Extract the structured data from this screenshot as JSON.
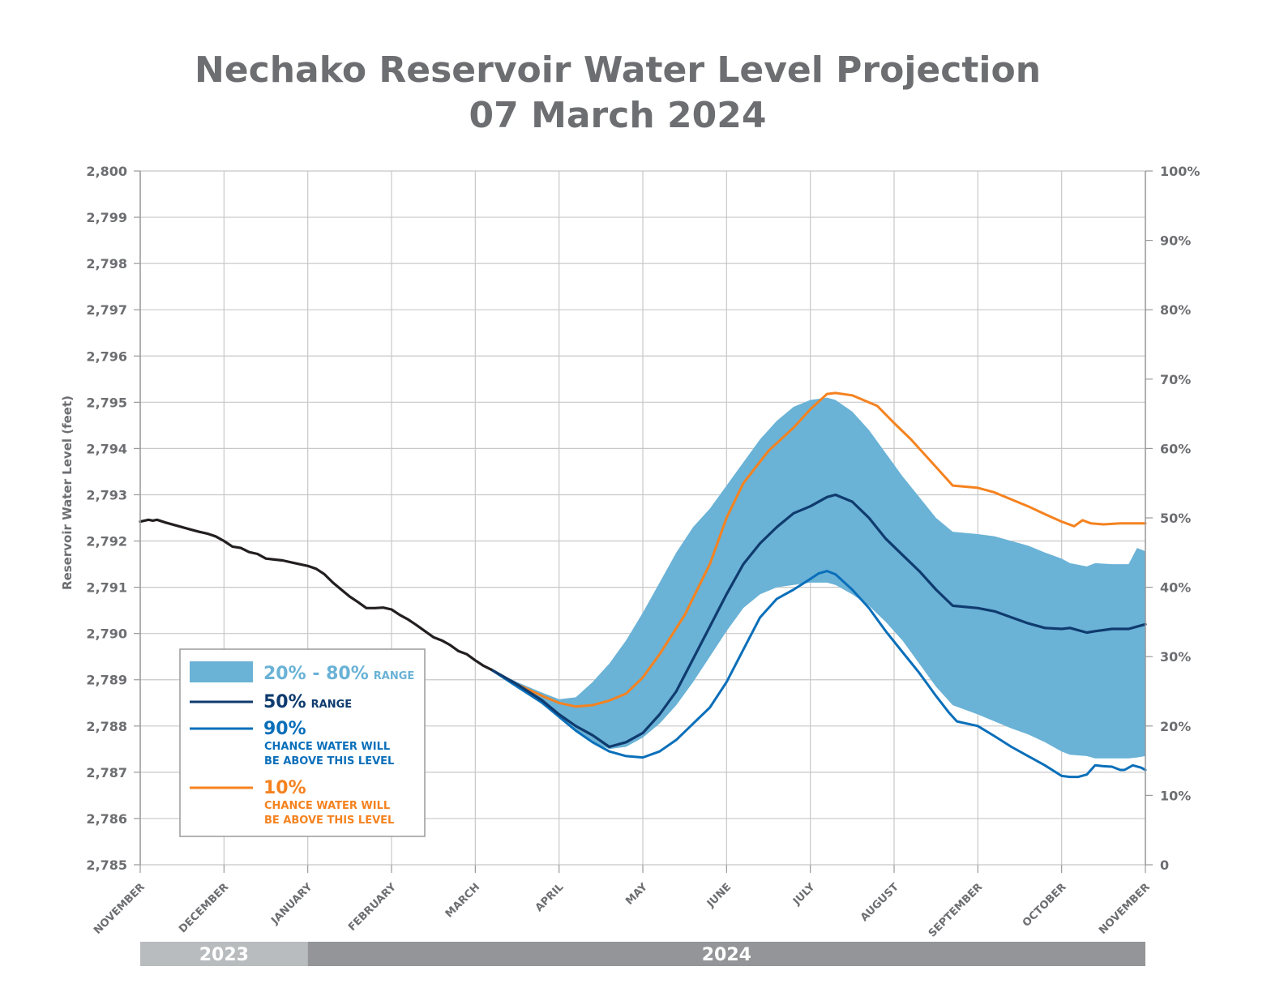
{
  "chart_data": {
    "type": "line",
    "title": "Nechako Reservoir Water Level Projection",
    "subtitle": "07 March 2024",
    "ylabel": "Reservoir Water Level (feet)",
    "ylim": [
      2785,
      2800
    ],
    "y_ticks": [
      "2,785",
      "2,786",
      "2,787",
      "2,788",
      "2,789",
      "2,790",
      "2,791",
      "2,792",
      "2,793",
      "2,794",
      "2,795",
      "2,796",
      "2,797",
      "2,798",
      "2,799",
      "2,800"
    ],
    "y2_ticks": [
      "0",
      "10%",
      "20%",
      "30%",
      "40%",
      "50%",
      "60%",
      "70%",
      "80%",
      "90%",
      "100%"
    ],
    "x_ticks": [
      "NOVEMBER",
      "DECEMBER",
      "JANUARY",
      "FEBRUARY",
      "MARCH",
      "APRIL",
      "MAY",
      "JUNE",
      "JULY",
      "AUGUST",
      "SEPTEMBER",
      "OCTOBER",
      "NOVEMBER"
    ],
    "years": [
      {
        "label": "2023",
        "from": 0,
        "to": 2
      },
      {
        "label": "2024",
        "from": 2,
        "to": 12
      }
    ],
    "grid": true,
    "legend_position": "bottom-left",
    "legend": {
      "band": {
        "big": "20% - 80%",
        "small": "RANGE"
      },
      "median": {
        "big": "50%",
        "small": "RANGE"
      },
      "p90": {
        "big": "90%",
        "small1": "CHANCE WATER WILL",
        "small2": "BE ABOVE THIS LEVEL"
      },
      "p10": {
        "big": "10%",
        "small1": "CHANCE WATER WILL",
        "small2": "BE ABOVE THIS LEVEL"
      }
    },
    "colors": {
      "observed": "#231f20",
      "median": "#0f3b6e",
      "p90": "#0a6fba",
      "p10": "#f5821f",
      "band": "#6ab2d6",
      "band_text": "#6ab2d6",
      "grid": "#c8c8c8",
      "year_2023": "#b8bcbf",
      "year_2024": "#939598"
    },
    "x_unit": "months since 1 Nov 2023",
    "series": [
      {
        "name": "observed",
        "x": [
          0,
          0.05,
          0.1,
          0.15,
          0.2,
          0.3,
          0.4,
          0.5,
          0.6,
          0.7,
          0.8,
          0.9,
          1.0,
          1.1,
          1.2,
          1.3,
          1.4,
          1.5,
          1.6,
          1.7,
          1.8,
          1.9,
          2.0,
          2.1,
          2.2,
          2.3,
          2.4,
          2.5,
          2.6,
          2.7,
          2.8,
          2.9,
          3.0,
          3.1,
          3.2,
          3.3,
          3.4,
          3.5,
          3.6,
          3.7,
          3.8,
          3.9,
          4.0,
          4.1,
          4.19
        ],
        "values": [
          2792.42,
          2792.44,
          2792.46,
          2792.44,
          2792.46,
          2792.4,
          2792.35,
          2792.3,
          2792.25,
          2792.2,
          2792.16,
          2792.1,
          2792.0,
          2791.88,
          2791.85,
          2791.76,
          2791.72,
          2791.62,
          2791.6,
          2791.58,
          2791.54,
          2791.5,
          2791.46,
          2791.4,
          2791.28,
          2791.1,
          2790.95,
          2790.8,
          2790.68,
          2790.55,
          2790.55,
          2790.56,
          2790.52,
          2790.4,
          2790.3,
          2790.18,
          2790.05,
          2789.92,
          2789.85,
          2789.75,
          2789.62,
          2789.55,
          2789.42,
          2789.3,
          2789.22
        ]
      },
      {
        "name": "10%",
        "x": [
          4.19,
          4.5,
          4.8,
          5.0,
          5.2,
          5.4,
          5.6,
          5.8,
          6.0,
          6.2,
          6.5,
          6.8,
          7.0,
          7.2,
          7.5,
          7.8,
          8.0,
          8.2,
          8.3,
          8.5,
          8.8,
          9.0,
          9.2,
          9.4,
          9.6,
          9.7,
          10.0,
          10.2,
          10.4,
          10.6,
          10.8,
          11.0,
          11.15,
          11.25,
          11.35,
          11.5,
          11.7,
          12.0
        ],
        "values": [
          2789.22,
          2788.9,
          2788.65,
          2788.5,
          2788.42,
          2788.45,
          2788.55,
          2788.7,
          2789.05,
          2789.55,
          2790.4,
          2791.5,
          2792.5,
          2793.25,
          2793.95,
          2794.45,
          2794.85,
          2795.18,
          2795.2,
          2795.15,
          2794.92,
          2794.55,
          2794.2,
          2793.8,
          2793.4,
          2793.2,
          2793.15,
          2793.05,
          2792.9,
          2792.75,
          2792.58,
          2792.42,
          2792.32,
          2792.45,
          2792.38,
          2792.36,
          2792.38,
          2792.38
        ]
      },
      {
        "name": "50%",
        "x": [
          4.19,
          4.5,
          4.8,
          5.0,
          5.2,
          5.4,
          5.6,
          5.8,
          6.0,
          6.2,
          6.4,
          6.6,
          6.8,
          7.0,
          7.2,
          7.4,
          7.6,
          7.8,
          8.0,
          8.2,
          8.3,
          8.5,
          8.7,
          8.9,
          9.1,
          9.3,
          9.5,
          9.7,
          10.0,
          10.2,
          10.4,
          10.6,
          10.8,
          11.0,
          11.1,
          11.3,
          11.4,
          11.6,
          11.8,
          12.0
        ],
        "values": [
          2789.22,
          2788.9,
          2788.55,
          2788.25,
          2788.0,
          2787.8,
          2787.55,
          2787.65,
          2787.85,
          2788.25,
          2788.75,
          2789.45,
          2790.15,
          2790.85,
          2791.5,
          2791.95,
          2792.3,
          2792.6,
          2792.75,
          2792.95,
          2793.0,
          2792.85,
          2792.5,
          2792.05,
          2791.7,
          2791.35,
          2790.95,
          2790.6,
          2790.55,
          2790.48,
          2790.35,
          2790.22,
          2790.12,
          2790.1,
          2790.12,
          2790.02,
          2790.05,
          2790.1,
          2790.1,
          2790.2
        ]
      },
      {
        "name": "90%",
        "x": [
          4.19,
          4.5,
          4.8,
          5.0,
          5.2,
          5.4,
          5.6,
          5.8,
          6.0,
          6.2,
          6.4,
          6.6,
          6.8,
          7.0,
          7.2,
          7.4,
          7.6,
          7.8,
          8.0,
          8.1,
          8.2,
          8.3,
          8.5,
          8.7,
          8.9,
          9.1,
          9.3,
          9.5,
          9.65,
          9.75,
          10.0,
          10.2,
          10.4,
          10.6,
          10.8,
          11.0,
          11.1,
          11.2,
          11.3,
          11.4,
          11.5,
          11.6,
          11.7,
          11.75,
          11.85,
          11.95,
          12.0
        ],
        "values": [
          2789.22,
          2788.85,
          2788.5,
          2788.2,
          2787.9,
          2787.65,
          2787.45,
          2787.35,
          2787.32,
          2787.45,
          2787.7,
          2788.05,
          2788.4,
          2788.95,
          2789.65,
          2790.35,
          2790.75,
          2790.95,
          2791.18,
          2791.3,
          2791.35,
          2791.28,
          2790.95,
          2790.55,
          2790.05,
          2789.6,
          2789.15,
          2788.65,
          2788.3,
          2788.1,
          2788.0,
          2787.78,
          2787.55,
          2787.35,
          2787.15,
          2786.92,
          2786.9,
          2786.9,
          2786.95,
          2787.15,
          2787.13,
          2787.12,
          2787.05,
          2787.05,
          2787.15,
          2787.1,
          2787.05
        ]
      },
      {
        "name": "20%-80% band",
        "x": [
          4.19,
          4.5,
          4.8,
          5.0,
          5.2,
          5.4,
          5.6,
          5.8,
          6.0,
          6.2,
          6.4,
          6.6,
          6.8,
          7.0,
          7.2,
          7.4,
          7.6,
          7.8,
          8.0,
          8.2,
          8.3,
          8.5,
          8.7,
          8.9,
          9.1,
          9.3,
          9.5,
          9.7,
          10.0,
          10.2,
          10.4,
          10.6,
          10.8,
          11.0,
          11.1,
          11.3,
          11.4,
          11.6,
          11.8,
          11.9,
          12.0
        ],
        "upper": [
          2789.22,
          2788.95,
          2788.72,
          2788.58,
          2788.62,
          2788.95,
          2789.35,
          2789.85,
          2790.45,
          2791.1,
          2791.75,
          2792.3,
          2792.7,
          2793.2,
          2793.7,
          2794.2,
          2794.6,
          2794.9,
          2795.05,
          2795.1,
          2795.05,
          2794.8,
          2794.4,
          2793.9,
          2793.4,
          2792.95,
          2792.5,
          2792.2,
          2792.15,
          2792.1,
          2792.0,
          2791.9,
          2791.75,
          2791.62,
          2791.52,
          2791.45,
          2791.52,
          2791.5,
          2791.5,
          2791.85,
          2791.78
        ],
        "lower": [
          2789.22,
          2788.9,
          2788.55,
          2788.22,
          2787.9,
          2787.65,
          2787.5,
          2787.55,
          2787.75,
          2788.05,
          2788.45,
          2788.95,
          2789.5,
          2790.05,
          2790.55,
          2790.85,
          2791.0,
          2791.05,
          2791.1,
          2791.1,
          2791.05,
          2790.85,
          2790.6,
          2790.25,
          2789.85,
          2789.35,
          2788.85,
          2788.45,
          2788.25,
          2788.1,
          2787.95,
          2787.82,
          2787.65,
          2787.45,
          2787.38,
          2787.35,
          2787.3,
          2787.3,
          2787.3,
          2787.32,
          2787.35
        ]
      }
    ]
  }
}
